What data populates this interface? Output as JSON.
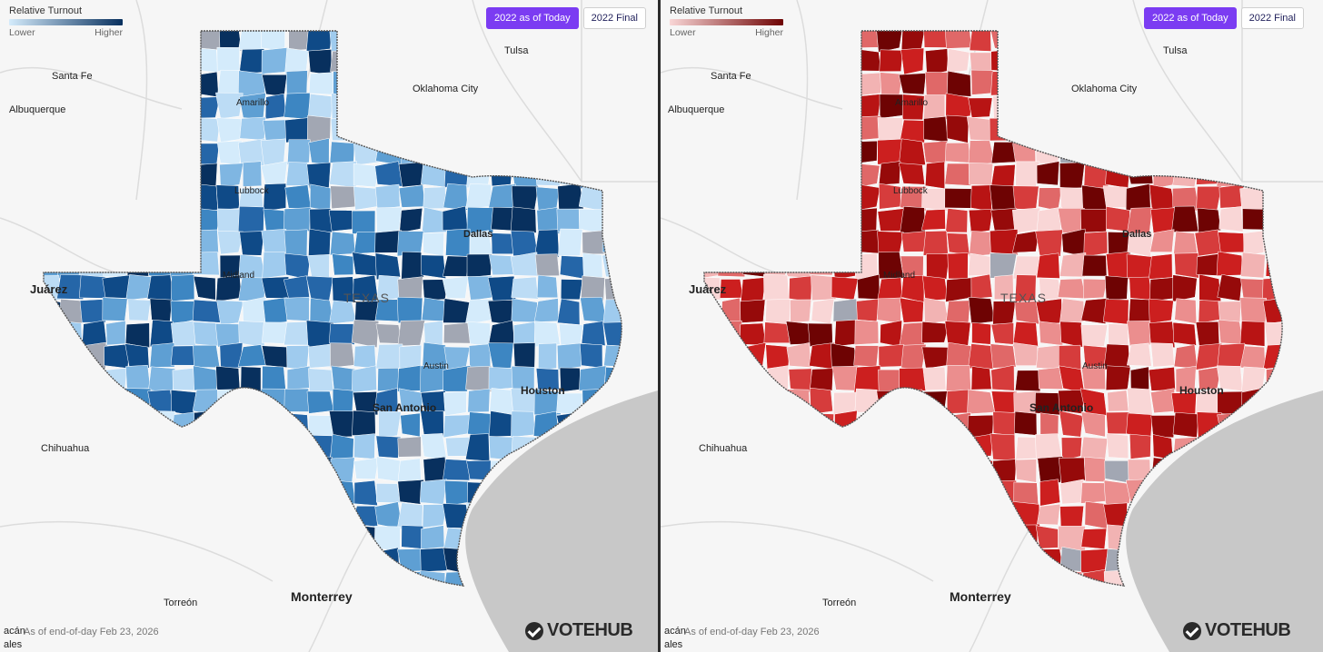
{
  "legend": {
    "title": "Relative Turnout",
    "lower": "Lower",
    "higher": "Higher"
  },
  "toggle": {
    "today_label": "2022 as of Today",
    "final_label": "2022 Final",
    "selected": "2022 as of Today"
  },
  "footnote": "As of end-of-day Feb 23, 2026",
  "edge_text_top": "acán",
  "edge_text_bottom": "ales",
  "brand": "VOTEHUB",
  "state_label": "TEXAS",
  "cities": {
    "santa_fe": "Santa Fe",
    "albuquerque": "Albuquerque",
    "tulsa": "Tulsa",
    "oklahoma_city": "Oklahoma City",
    "amarillo": "Amarillo",
    "lubbock": "Lubbock",
    "midland": "Midland",
    "dallas": "Dallas",
    "juarez": "Juárez",
    "austin": "Austin",
    "san_antonio": "San Antonio",
    "houston": "Houston",
    "chihuahua": "Chihuahua",
    "torreon": "Torreón",
    "monterrey": "Monterrey"
  },
  "maps": [
    {
      "id": "left",
      "palette": "blue",
      "colors": [
        "#d4ebfb",
        "#bcdcf5",
        "#9fcbee",
        "#7fb6e2",
        "#5e9fd3",
        "#3d86c2",
        "#2566a8",
        "#0f4a87",
        "#08305e",
        "#a2a7b3"
      ]
    },
    {
      "id": "right",
      "palette": "red",
      "colors": [
        "#f9d6d6",
        "#f2b3b3",
        "#eb8e8e",
        "#e06868",
        "#d63c3c",
        "#cc1f1f",
        "#b81414",
        "#960a0a",
        "#6e0303",
        "#a2a7b3"
      ]
    }
  ]
}
